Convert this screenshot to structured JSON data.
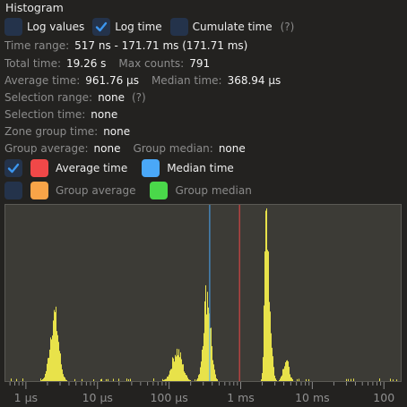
{
  "panel": {
    "title": "Histogram"
  },
  "options": {
    "log_values": {
      "label": "Log values",
      "checked": false
    },
    "log_time": {
      "label": "Log time",
      "checked": true
    },
    "cumulate_time": {
      "label": "Cumulate time",
      "checked": false
    },
    "help": "(?)"
  },
  "stats": {
    "time_range_label": "Time range:",
    "time_range_value": "517 ns - 171.71 ms (171.71 ms)",
    "total_time_label": "Total time:",
    "total_time_value": "19.26 s",
    "max_counts_label": "Max counts:",
    "max_counts_value": "791",
    "average_time_label": "Average time:",
    "average_time_value": "961.76 µs",
    "median_time_label": "Median time:",
    "median_time_value": "368.94 µs",
    "selection_range_label": "Selection range:",
    "selection_range_value": "none",
    "selection_help": "(?)",
    "selection_time_label": "Selection time:",
    "selection_time_value": "none",
    "zone_group_time_label": "Zone group time:",
    "zone_group_time_value": "none",
    "group_average_label": "Group average:",
    "group_average_value": "none",
    "group_median_label": "Group median:",
    "group_median_value": "none"
  },
  "legend": {
    "show_markers": {
      "checked": true
    },
    "show_group_markers": {
      "checked": false
    },
    "average_time": {
      "label": "Average time",
      "color": "#f04848"
    },
    "median_time": {
      "label": "Median time",
      "color": "#4aa8f8"
    },
    "group_average": {
      "label": "Group average",
      "color": "#f8a448"
    },
    "group_median": {
      "label": "Group median",
      "color": "#4ad84a"
    }
  },
  "chart_data": {
    "type": "histogram",
    "x_scale": "log",
    "x_unit": "seconds",
    "xlim": [
      5.17e-07,
      0.17171
    ],
    "tick_labels": [
      "1 µs",
      "10 µs",
      "100 µs",
      "1 ms",
      "10 ms",
      "100"
    ],
    "tick_values": [
      1e-06,
      1e-05,
      0.0001,
      0.001,
      0.01,
      0.1
    ],
    "bar_color": "#e8e24a",
    "markers": [
      {
        "name": "Median time",
        "x": 0.00036894,
        "color": "#4aa8f8"
      },
      {
        "name": "Average time",
        "x": 0.00096176,
        "color": "#f04848"
      }
    ],
    "clusters": [
      {
        "center": 2.5e-06,
        "peak": 0.37,
        "width": 0.06
      },
      {
        "center": 0.00013,
        "peak": 0.17,
        "width": 0.07
      },
      {
        "center": 0.00034,
        "peak": 0.5,
        "width": 0.05
      },
      {
        "center": 0.0023,
        "peak": 0.98,
        "width": 0.025
      },
      {
        "center": 0.0026,
        "peak": 0.28,
        "width": 0.03
      },
      {
        "center": 0.0043,
        "peak": 0.12,
        "width": 0.04
      }
    ]
  }
}
